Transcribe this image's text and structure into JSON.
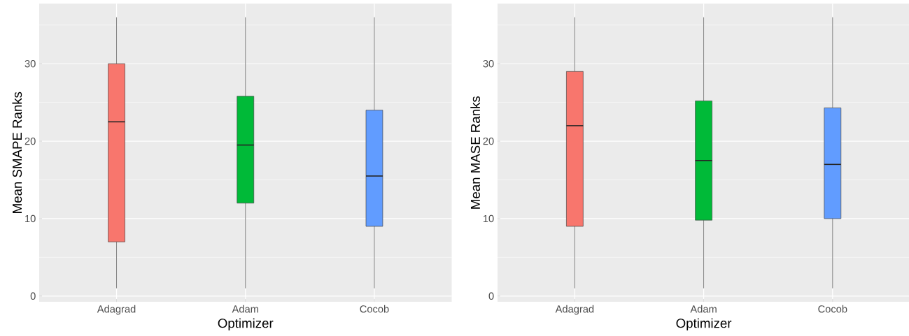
{
  "chart_data": [
    {
      "type": "box",
      "xlabel": "Optimizer",
      "ylabel": "Mean SMAPE Ranks",
      "categories": [
        "Adagrad",
        "Adam",
        "Cocob"
      ],
      "colors": [
        "#f8766d",
        "#00ba38",
        "#619cff"
      ],
      "boxes": [
        {
          "low": 1,
          "q1": 7,
          "median": 22.5,
          "q3": 30,
          "high": 36
        },
        {
          "low": 1,
          "q1": 12,
          "median": 19.5,
          "q3": 25.8,
          "high": 36
        },
        {
          "low": 1,
          "q1": 9,
          "median": 15.5,
          "q3": 24,
          "high": 36
        }
      ],
      "ylim": [
        -0.75,
        37.75
      ],
      "yticks": [
        0,
        10,
        20,
        30
      ],
      "grid": true
    },
    {
      "type": "box",
      "xlabel": "Optimizer",
      "ylabel": "Mean MASE Ranks",
      "categories": [
        "Adagrad",
        "Adam",
        "Cocob"
      ],
      "colors": [
        "#f8766d",
        "#00ba38",
        "#619cff"
      ],
      "boxes": [
        {
          "low": 1,
          "q1": 9,
          "median": 22,
          "q3": 29,
          "high": 36
        },
        {
          "low": 1,
          "q1": 9.8,
          "median": 17.5,
          "q3": 25.2,
          "high": 36
        },
        {
          "low": 1,
          "q1": 10,
          "median": 17,
          "q3": 24.3,
          "high": 36
        }
      ],
      "ylim": [
        -0.75,
        37.75
      ],
      "yticks": [
        0,
        10,
        20,
        30
      ],
      "grid": true
    }
  ]
}
